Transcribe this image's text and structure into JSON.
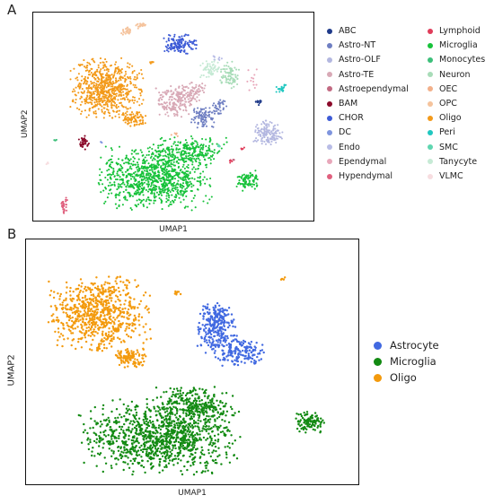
{
  "panels": {
    "a": {
      "letter": "A",
      "xlabel": "UMAP1",
      "ylabel": "UMAP2",
      "legend_col1": [
        {
          "label": "ABC",
          "color": "#1f3a8a"
        },
        {
          "label": "Astro-NT",
          "color": "#6f7fc2"
        },
        {
          "label": "Astro-OLF",
          "color": "#b3b7e0"
        },
        {
          "label": "Astro-TE",
          "color": "#d8a9b6"
        },
        {
          "label": "Astroependymal",
          "color": "#c26a82"
        },
        {
          "label": "BAM",
          "color": "#8b0a2a"
        },
        {
          "label": "CHOR",
          "color": "#3d5bd6"
        },
        {
          "label": "DC",
          "color": "#7f95de"
        },
        {
          "label": "Endo",
          "color": "#b8bce6"
        },
        {
          "label": "Ependymal",
          "color": "#e8a7ba"
        },
        {
          "label": "Hypendymal",
          "color": "#e0607e"
        }
      ],
      "legend_col2": [
        {
          "label": "Lymphoid",
          "color": "#e03c5a"
        },
        {
          "label": "Microglia",
          "color": "#17c23a"
        },
        {
          "label": "Monocytes",
          "color": "#3dbf7a"
        },
        {
          "label": "Neuron",
          "color": "#a8dcb8"
        },
        {
          "label": "OEC",
          "color": "#f2b08a"
        },
        {
          "label": "OPC",
          "color": "#f5c39c"
        },
        {
          "label": "Oligo",
          "color": "#f39a1a"
        },
        {
          "label": "Peri",
          "color": "#1fc7c0"
        },
        {
          "label": "SMC",
          "color": "#5fd6b0"
        },
        {
          "label": "Tanycyte",
          "color": "#c6ead5"
        },
        {
          "label": "VLMC",
          "color": "#f7dde0"
        }
      ]
    },
    "b": {
      "letter": "B",
      "xlabel": "UMAP1",
      "ylabel": "UMAP2",
      "legend": [
        {
          "label": "Astrocyte",
          "color": "#4169e1"
        },
        {
          "label": "Microglia",
          "color": "#128a12"
        },
        {
          "label": "Oligo",
          "color": "#f39a0d"
        }
      ]
    }
  },
  "chart_data": [
    {
      "type": "scatter",
      "title": "",
      "xlabel": "UMAP1",
      "ylabel": "UMAP2",
      "grid": false,
      "legend_placement": "right, two columns",
      "axis_ticks": "none",
      "series": [
        {
          "name": "Oligo",
          "color": "#f39a1a",
          "clusters": [
            {
              "cx": 0.26,
              "cy": 0.36,
              "rx": 0.12,
              "ry": 0.13,
              "n": 700
            },
            {
              "cx": 0.35,
              "cy": 0.51,
              "rx": 0.05,
              "ry": 0.035,
              "n": 90
            },
            {
              "cx": 0.42,
              "cy": 0.24,
              "rx": 0.011,
              "ry": 0.008,
              "n": 6
            }
          ]
        },
        {
          "name": "Microglia",
          "color": "#17c23a",
          "clusters": [
            {
              "cx": 0.43,
              "cy": 0.79,
              "rx": 0.19,
              "ry": 0.14,
              "n": 950
            },
            {
              "cx": 0.55,
              "cy": 0.66,
              "rx": 0.13,
              "ry": 0.065,
              "n": 240
            },
            {
              "cx": 0.76,
              "cy": 0.8,
              "rx": 0.035,
              "ry": 0.045,
              "n": 90
            }
          ]
        },
        {
          "name": "CHOR",
          "color": "#3d5bd6",
          "clusters": [
            {
              "cx": 0.52,
              "cy": 0.15,
              "rx": 0.06,
              "ry": 0.045,
              "n": 140
            }
          ]
        },
        {
          "name": "Astro-TE",
          "color": "#d8a9b6",
          "clusters": [
            {
              "cx": 0.5,
              "cy": 0.42,
              "rx": 0.065,
              "ry": 0.07,
              "n": 200
            },
            {
              "cx": 0.57,
              "cy": 0.37,
              "rx": 0.04,
              "ry": 0.05,
              "n": 70
            }
          ]
        },
        {
          "name": "Astro-NT",
          "color": "#6f7fc2",
          "clusters": [
            {
              "cx": 0.6,
              "cy": 0.5,
              "rx": 0.045,
              "ry": 0.045,
              "n": 90
            },
            {
              "cx": 0.66,
              "cy": 0.45,
              "rx": 0.025,
              "ry": 0.04,
              "n": 40
            }
          ]
        },
        {
          "name": "Astro-OLF",
          "color": "#b3b7e0",
          "clusters": [
            {
              "cx": 0.83,
              "cy": 0.58,
              "rx": 0.05,
              "ry": 0.06,
              "n": 130
            }
          ]
        },
        {
          "name": "Neuron",
          "color": "#a8dcb8",
          "clusters": [
            {
              "cx": 0.7,
              "cy": 0.3,
              "rx": 0.035,
              "ry": 0.06,
              "n": 80
            }
          ]
        },
        {
          "name": "Tanycyte",
          "color": "#c6ead5",
          "clusters": [
            {
              "cx": 0.63,
              "cy": 0.27,
              "rx": 0.035,
              "ry": 0.045,
              "n": 60
            }
          ]
        },
        {
          "name": "OPC",
          "color": "#f5c39c",
          "clusters": [
            {
              "cx": 0.33,
              "cy": 0.09,
              "rx": 0.02,
              "ry": 0.02,
              "n": 30
            },
            {
              "cx": 0.38,
              "cy": 0.06,
              "rx": 0.02,
              "ry": 0.015,
              "n": 20
            }
          ]
        },
        {
          "name": "BAM",
          "color": "#8b0a2a",
          "clusters": [
            {
              "cx": 0.18,
              "cy": 0.62,
              "rx": 0.02,
              "ry": 0.03,
              "n": 40
            }
          ]
        },
        {
          "name": "Hypendymal",
          "color": "#e0607e",
          "clusters": [
            {
              "cx": 0.11,
              "cy": 0.92,
              "rx": 0.012,
              "ry": 0.04,
              "n": 30
            }
          ]
        },
        {
          "name": "Peri",
          "color": "#1fc7c0",
          "clusters": [
            {
              "cx": 0.88,
              "cy": 0.36,
              "rx": 0.02,
              "ry": 0.02,
              "n": 20
            }
          ]
        },
        {
          "name": "ABC",
          "color": "#1f3a8a",
          "clusters": [
            {
              "cx": 0.8,
              "cy": 0.43,
              "rx": 0.015,
              "ry": 0.015,
              "n": 12
            }
          ]
        },
        {
          "name": "Lymphoid",
          "color": "#e03c5a",
          "clusters": [
            {
              "cx": 0.7,
              "cy": 0.71,
              "rx": 0.005,
              "ry": 0.015,
              "n": 6
            },
            {
              "cx": 0.74,
              "cy": 0.65,
              "rx": 0.008,
              "ry": 0.008,
              "n": 5
            }
          ]
        },
        {
          "name": "Ependymal",
          "color": "#e8a7ba",
          "clusters": [
            {
              "cx": 0.78,
              "cy": 0.33,
              "rx": 0.02,
              "ry": 0.06,
              "n": 12
            }
          ]
        },
        {
          "name": "SMC",
          "color": "#5fd6b0",
          "clusters": [
            {
              "cx": 0.66,
              "cy": 0.64,
              "rx": 0.01,
              "ry": 0.01,
              "n": 8
            }
          ]
        },
        {
          "name": "Monocytes",
          "color": "#3dbf7a",
          "clusters": [
            {
              "cx": 0.08,
              "cy": 0.61,
              "rx": 0.006,
              "ry": 0.006,
              "n": 4
            }
          ]
        },
        {
          "name": "Endo",
          "color": "#b8bce6",
          "clusters": [
            {
              "cx": 0.65,
              "cy": 0.21,
              "rx": 0.02,
              "ry": 0.02,
              "n": 8
            }
          ]
        },
        {
          "name": "DC",
          "color": "#7f95de",
          "clusters": [
            {
              "cx": 0.24,
              "cy": 0.62,
              "rx": 0.005,
              "ry": 0.005,
              "n": 3
            }
          ]
        },
        {
          "name": "OEC",
          "color": "#f2b08a",
          "clusters": [
            {
              "cx": 0.5,
              "cy": 0.58,
              "rx": 0.02,
              "ry": 0.01,
              "n": 6
            }
          ]
        },
        {
          "name": "VLMC",
          "color": "#f7dde0",
          "clusters": [
            {
              "cx": 0.05,
              "cy": 0.72,
              "rx": 0.005,
              "ry": 0.01,
              "n": 4
            }
          ]
        },
        {
          "name": "Astroependymal",
          "color": "#c26a82",
          "clusters": [
            {
              "cx": 0.71,
              "cy": 0.7,
              "rx": 0.005,
              "ry": 0.005,
              "n": 3
            }
          ]
        }
      ]
    },
    {
      "type": "scatter",
      "title": "",
      "xlabel": "UMAP1",
      "ylabel": "UMAP2",
      "grid": false,
      "legend_placement": "right",
      "axis_ticks": "none",
      "series": [
        {
          "name": "Oligo",
          "color": "#f39a0d",
          "clusters": [
            {
              "cx": 0.22,
              "cy": 0.3,
              "rx": 0.14,
              "ry": 0.14,
              "n": 750
            },
            {
              "cx": 0.31,
              "cy": 0.48,
              "rx": 0.05,
              "ry": 0.035,
              "n": 110
            },
            {
              "cx": 0.45,
              "cy": 0.22,
              "rx": 0.012,
              "ry": 0.01,
              "n": 8
            },
            {
              "cx": 0.77,
              "cy": 0.16,
              "rx": 0.012,
              "ry": 0.008,
              "n": 6
            }
          ]
        },
        {
          "name": "Astrocyte",
          "color": "#4169e1",
          "clusters": [
            {
              "cx": 0.57,
              "cy": 0.37,
              "rx": 0.06,
              "ry": 0.09,
              "n": 220
            },
            {
              "cx": 0.64,
              "cy": 0.46,
              "rx": 0.08,
              "ry": 0.05,
              "n": 160
            },
            {
              "cx": 0.57,
              "cy": 0.3,
              "rx": 0.04,
              "ry": 0.04,
              "n": 60
            }
          ]
        },
        {
          "name": "Microglia",
          "color": "#128a12",
          "clusters": [
            {
              "cx": 0.4,
              "cy": 0.8,
              "rx": 0.22,
              "ry": 0.14,
              "n": 1100
            },
            {
              "cx": 0.5,
              "cy": 0.67,
              "rx": 0.11,
              "ry": 0.07,
              "n": 260
            },
            {
              "cx": 0.85,
              "cy": 0.74,
              "rx": 0.04,
              "ry": 0.04,
              "n": 110
            }
          ]
        }
      ]
    }
  ]
}
